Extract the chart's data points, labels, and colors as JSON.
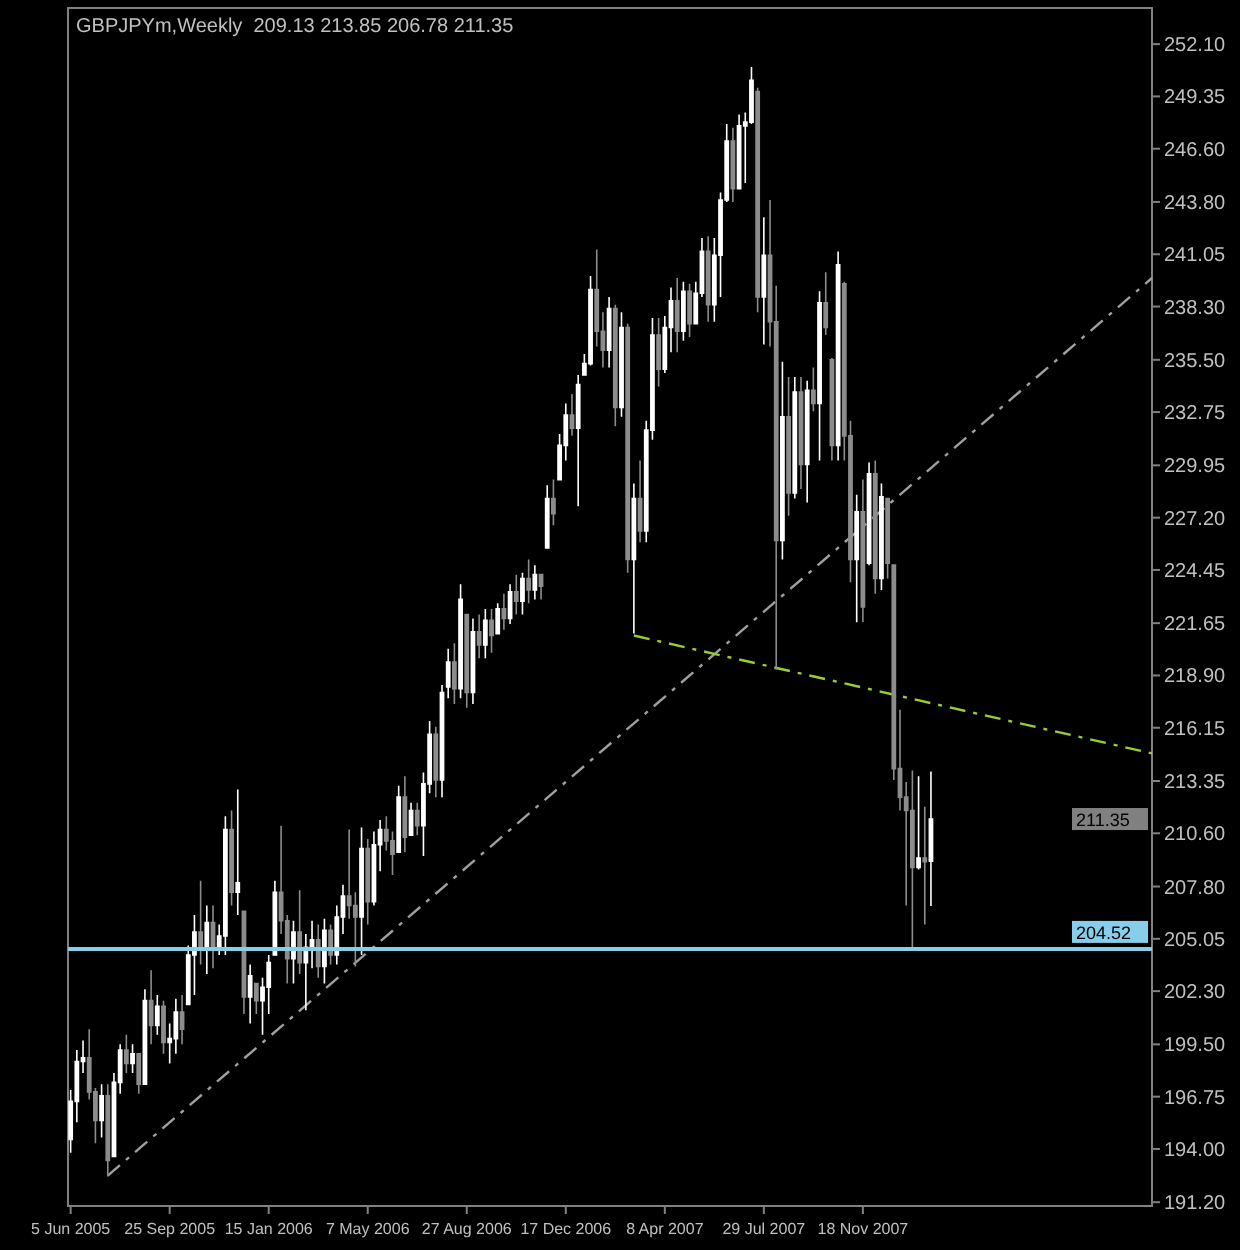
{
  "chart_data": {
    "type": "candlestick",
    "title": "GBPJPYm,Weekly  209.13 213.85 206.78 211.35",
    "colors": [
      "#ffffff",
      "#ffffff",
      "#ffffff",
      "#8c8c8c",
      "#8c8c8c",
      "#ffffff",
      "#8c8c8c",
      "#ffffff",
      "#ffffff",
      "#8c8c8c",
      "#ffffff",
      "#8c8c8c",
      "#ffffff",
      "#8c8c8c",
      "#ffffff",
      "#8c8c8c",
      "#ffffff",
      "#ffffff",
      "#8c8c8c",
      "#ffffff",
      "#ffffff",
      "#8c8c8c",
      "#ffffff",
      "#8c8c8c",
      "#ffffff",
      "#ffffff",
      "#8c8c8c",
      "#ffffff",
      "#8c8c8c",
      "#ffffff",
      "#8c8c8c",
      "#ffffff",
      "#ffffff",
      "#ffffff",
      "#8c8c8c",
      "#8c8c8c",
      "#ffffff",
      "#8c8c8c",
      "#ffffff",
      "#ffffff",
      "#8c8c8c",
      "#ffffff",
      "#8c8c8c",
      "#ffffff",
      "#ffffff",
      "#8c8c8c",
      "#8c8c8c",
      "#ffffff",
      "#8c8c8c",
      "#ffffff",
      "#ffffff",
      "#8c8c8c",
      "#8c8c8c",
      "#ffffff",
      "#8c8c8c",
      "#ffffff",
      "#8c8c8c",
      "#ffffff",
      "#ffffff",
      "#8c8c8c",
      "#ffffff",
      "#ffffff",
      "#8c8c8c",
      "#ffffff",
      "#8c8c8c",
      "#ffffff",
      "#8c8c8c",
      "#ffffff",
      "#8c8c8c",
      "#ffffff",
      "#8c8c8c",
      "#ffffff",
      "#8c8c8c",
      "#ffffff",
      "#8c8c8c",
      "#ffffff",
      "#8c8c8c",
      "#ffffff",
      "#8c8c8c",
      "#ffffff",
      "#ffffff",
      "#8c8c8c",
      "#ffffff",
      "#ffffff",
      "#ffffff",
      "#8c8c8c",
      "#8c8c8c",
      "#ffffff",
      "#8c8c8c",
      "#ffffff",
      "#8c8c8c",
      "#ffffff",
      "#8c8c8c",
      "#ffffff",
      "#ffffff",
      "#8c8c8c",
      "#ffffff",
      "#ffffff",
      "#8c8c8c",
      "#ffffff",
      "#8c8c8c",
      "#ffffff",
      "#ffffff",
      "#8c8c8c",
      "#ffffff",
      "#ffffff",
      "#ffffff",
      "#8c8c8c",
      "#ffffff",
      "#ffffff",
      "#ffffff",
      "#8c8c8c",
      "#ffffff",
      "#8c8c8c",
      "#8c8c8c",
      "#ffffff",
      "#8c8c8c",
      "#ffffff",
      "#8c8c8c",
      "#ffffff",
      "#8c8c8c",
      "#ffffff",
      "#8c8c8c",
      "#8c8c8c",
      "#ffffff",
      "#8c8c8c",
      "#8c8c8c",
      "#ffffff",
      "#8c8c8c",
      "#ffffff",
      "#8c8c8c",
      "#ffffff",
      "#8c8c8c",
      "#8c8c8c",
      "#8c8c8c",
      "#8c8c8c",
      "#8c8c8c",
      "#ffffff",
      "#8c8c8c",
      "#ffffff"
    ],
    "x": [
      "2005-06-05",
      "2005-06-12",
      "2005-06-19",
      "2005-06-26",
      "2005-07-03",
      "2005-07-10",
      "2005-07-17",
      "2005-07-24",
      "2005-07-31",
      "2005-08-07",
      "2005-08-14",
      "2005-08-21",
      "2005-08-28",
      "2005-09-04",
      "2005-09-11",
      "2005-09-18",
      "2005-09-25",
      "2005-10-02",
      "2005-10-09",
      "2005-10-16",
      "2005-10-23",
      "2005-10-30",
      "2005-11-06",
      "2005-11-13",
      "2005-11-20",
      "2005-11-27",
      "2005-12-04",
      "2005-12-11",
      "2005-12-18",
      "2005-12-25",
      "2006-01-01",
      "2006-01-08",
      "2006-01-15",
      "2006-01-22",
      "2006-01-29",
      "2006-02-05",
      "2006-02-12",
      "2006-02-19",
      "2006-02-26",
      "2006-03-05",
      "2006-03-12",
      "2006-03-19",
      "2006-03-26",
      "2006-04-02",
      "2006-04-09",
      "2006-04-16",
      "2006-04-23",
      "2006-04-30",
      "2006-05-07",
      "2006-05-14",
      "2006-05-21",
      "2006-05-28",
      "2006-06-04",
      "2006-06-11",
      "2006-06-18",
      "2006-06-25",
      "2006-07-02",
      "2006-07-09",
      "2006-07-16",
      "2006-07-23",
      "2006-07-30",
      "2006-08-06",
      "2006-08-13",
      "2006-08-20",
      "2006-08-27",
      "2006-09-03",
      "2006-09-10",
      "2006-09-17",
      "2006-09-24",
      "2006-10-01",
      "2006-10-08",
      "2006-10-15",
      "2006-10-22",
      "2006-10-29",
      "2006-11-05",
      "2006-11-12",
      "2006-11-19",
      "2006-11-26",
      "2006-12-03",
      "2006-12-10",
      "2006-12-17",
      "2006-12-24",
      "2006-12-31",
      "2007-01-07",
      "2007-01-14",
      "2007-01-21",
      "2007-01-28",
      "2007-02-04",
      "2007-02-11",
      "2007-02-18",
      "2007-02-25",
      "2007-03-04",
      "2007-03-11",
      "2007-03-18",
      "2007-03-25",
      "2007-04-01",
      "2007-04-08",
      "2007-04-15",
      "2007-04-22",
      "2007-04-29",
      "2007-05-06",
      "2007-05-13",
      "2007-05-20",
      "2007-05-27",
      "2007-06-03",
      "2007-06-10",
      "2007-06-17",
      "2007-06-24",
      "2007-07-01",
      "2007-07-08",
      "2007-07-15",
      "2007-07-22",
      "2007-07-29",
      "2007-08-05",
      "2007-08-12",
      "2007-08-19",
      "2007-08-26",
      "2007-09-02",
      "2007-09-09",
      "2007-09-16",
      "2007-09-23",
      "2007-09-30",
      "2007-10-07",
      "2007-10-14",
      "2007-10-21",
      "2007-10-28",
      "2007-11-04",
      "2007-11-11",
      "2007-11-18",
      "2007-11-25",
      "2007-12-02",
      "2007-12-09",
      "2007-12-16",
      "2007-12-23",
      "2007-12-30",
      "2008-01-06",
      "2008-01-13",
      "2008-01-20",
      "2008-01-27",
      "2008-02-03"
    ],
    "ohlc": [
      [
        194.5,
        197.1,
        193.8,
        196.5
      ],
      [
        196.5,
        199.2,
        195.4,
        198.6
      ],
      [
        198.6,
        199.7,
        198.0,
        198.8
      ],
      [
        198.8,
        200.3,
        196.6,
        197.0
      ],
      [
        197.0,
        197.2,
        194.3,
        195.5
      ],
      [
        195.5,
        197.4,
        194.6,
        196.8
      ],
      [
        196.8,
        197.4,
        192.55,
        193.4
      ],
      [
        193.6,
        198.0,
        193.6,
        197.5
      ],
      [
        197.5,
        199.5,
        196.9,
        199.2
      ],
      [
        199.2,
        200.0,
        198.0,
        198.5
      ],
      [
        198.5,
        199.5,
        198.0,
        199.0
      ],
      [
        199.0,
        199.0,
        196.9,
        197.4
      ],
      [
        197.4,
        202.4,
        197.4,
        201.8
      ],
      [
        201.8,
        203.4,
        199.5,
        200.5
      ],
      [
        200.5,
        202.1,
        200.0,
        201.5
      ],
      [
        201.5,
        201.8,
        199.0,
        199.6
      ],
      [
        199.6,
        200.6,
        198.5,
        199.8
      ],
      [
        199.8,
        201.9,
        199.0,
        201.2
      ],
      [
        201.2,
        202.1,
        199.5,
        200.3
      ],
      [
        201.6,
        204.7,
        201.6,
        204.2
      ],
      [
        204.2,
        206.3,
        202.1,
        205.4
      ],
      [
        205.4,
        208.1,
        203.7,
        204.6
      ],
      [
        204.6,
        206.8,
        203.2,
        205.9
      ],
      [
        205.9,
        206.8,
        203.5,
        204.5
      ],
      [
        204.5,
        205.8,
        204.2,
        205.2
      ],
      [
        205.2,
        211.5,
        204.2,
        210.8
      ],
      [
        210.8,
        211.8,
        206.8,
        207.5
      ],
      [
        207.5,
        212.9,
        206.3,
        208.0
      ],
      [
        206.5,
        206.5,
        201.1,
        202.0
      ],
      [
        202.0,
        203.7,
        200.6,
        203.1
      ],
      [
        202.7,
        202.7,
        201.1,
        201.8
      ],
      [
        201.8,
        203.0,
        200.0,
        202.5
      ],
      [
        202.5,
        204.2,
        201.1,
        203.8
      ],
      [
        204.2,
        208.1,
        204.2,
        207.5
      ],
      [
        207.5,
        211.0,
        205.3,
        206.0
      ],
      [
        206.0,
        206.3,
        202.7,
        204.0
      ],
      [
        204.0,
        206.0,
        202.7,
        205.4
      ],
      [
        205.4,
        207.6,
        203.2,
        203.8
      ],
      [
        203.8,
        205.3,
        201.3,
        204.6
      ],
      [
        204.6,
        206.0,
        203.5,
        205.0
      ],
      [
        205.0,
        205.8,
        203.0,
        203.6
      ],
      [
        203.6,
        206.1,
        202.7,
        205.5
      ],
      [
        205.5,
        205.8,
        203.7,
        204.2
      ],
      [
        204.2,
        206.8,
        203.7,
        206.2
      ],
      [
        206.2,
        207.9,
        205.3,
        207.3
      ],
      [
        207.3,
        210.8,
        206.1,
        206.8
      ],
      [
        206.8,
        207.5,
        203.6,
        206.2
      ],
      [
        206.2,
        210.9,
        204.2,
        209.8
      ],
      [
        209.8,
        210.3,
        205.8,
        207.0
      ],
      [
        207.0,
        210.7,
        206.8,
        210.0
      ],
      [
        210.0,
        211.3,
        208.6,
        210.8
      ],
      [
        210.8,
        211.5,
        209.7,
        210.2
      ],
      [
        210.2,
        210.7,
        208.4,
        209.5
      ],
      [
        209.6,
        213.1,
        209.6,
        212.5
      ],
      [
        212.5,
        213.6,
        209.6,
        210.4
      ],
      [
        210.5,
        212.2,
        210.5,
        211.8
      ],
      [
        211.8,
        212.2,
        210.5,
        211.0
      ],
      [
        211.0,
        213.8,
        209.4,
        213.2
      ],
      [
        213.2,
        216.5,
        212.7,
        215.8
      ],
      [
        215.8,
        216.2,
        212.5,
        213.4
      ],
      [
        213.4,
        218.4,
        212.5,
        218.0
      ],
      [
        218.3,
        220.3,
        217.7,
        219.6
      ],
      [
        219.6,
        220.6,
        217.4,
        218.2
      ],
      [
        218.2,
        223.7,
        217.7,
        222.9
      ],
      [
        222.1,
        222.1,
        217.2,
        218.0
      ],
      [
        218.0,
        221.9,
        217.4,
        221.2
      ],
      [
        221.2,
        222.1,
        219.8,
        220.5
      ],
      [
        220.5,
        222.4,
        219.8,
        221.8
      ],
      [
        221.8,
        222.4,
        220.1,
        221.0
      ],
      [
        221.1,
        222.7,
        221.1,
        222.4
      ],
      [
        222.4,
        223.2,
        221.3,
        221.9
      ],
      [
        221.9,
        223.7,
        221.6,
        223.3
      ],
      [
        223.3,
        224.2,
        222.1,
        222.8
      ],
      [
        222.8,
        224.3,
        222.1,
        224.0
      ],
      [
        224.0,
        225.0,
        222.7,
        223.4
      ],
      [
        223.4,
        224.7,
        222.9,
        224.2
      ],
      [
        224.2,
        224.2,
        222.9,
        223.6
      ],
      [
        225.6,
        228.9,
        225.6,
        228.2
      ],
      [
        228.2,
        229.2,
        226.8,
        227.4
      ],
      [
        229.2,
        231.6,
        229.2,
        231.0
      ],
      [
        231.0,
        233.2,
        230.2,
        232.6
      ],
      [
        232.6,
        233.7,
        231.5,
        231.9
      ],
      [
        231.9,
        234.7,
        227.8,
        234.2
      ],
      [
        234.7,
        235.8,
        234.7,
        235.3
      ],
      [
        235.3,
        239.9,
        235.2,
        239.2
      ],
      [
        239.2,
        241.3,
        236.2,
        237.0
      ],
      [
        237.0,
        238.0,
        235.1,
        236.0
      ],
      [
        236.0,
        238.8,
        235.1,
        238.2
      ],
      [
        238.2,
        238.4,
        232.0,
        233.0
      ],
      [
        233.0,
        238.0,
        232.5,
        237.2
      ],
      [
        237.2,
        237.4,
        224.3,
        225.0
      ],
      [
        225.0,
        229.0,
        221.1,
        228.2
      ],
      [
        228.2,
        230.2,
        225.9,
        226.5
      ],
      [
        226.5,
        232.3,
        225.9,
        231.8
      ],
      [
        231.8,
        237.7,
        231.3,
        236.8
      ],
      [
        236.8,
        237.7,
        234.1,
        235.0
      ],
      [
        235.0,
        237.8,
        234.8,
        237.2
      ],
      [
        237.2,
        239.3,
        235.9,
        238.6
      ],
      [
        238.6,
        239.8,
        235.9,
        237.0
      ],
      [
        237.0,
        239.6,
        236.5,
        239.1
      ],
      [
        239.1,
        239.5,
        236.7,
        237.4
      ],
      [
        237.4,
        239.6,
        237.4,
        239.0
      ],
      [
        239.0,
        241.9,
        238.8,
        241.2
      ],
      [
        241.2,
        242.0,
        237.5,
        238.4
      ],
      [
        238.4,
        241.9,
        237.5,
        241.0
      ],
      [
        241.0,
        244.3,
        238.8,
        243.9
      ],
      [
        243.9,
        247.9,
        243.8,
        247.0
      ],
      [
        247.0,
        247.7,
        243.8,
        244.5
      ],
      [
        244.5,
        248.4,
        244.5,
        247.8
      ],
      [
        247.8,
        248.5,
        244.8,
        248.0
      ],
      [
        248.0,
        250.9,
        247.9,
        250.2
      ],
      [
        249.6,
        249.8,
        238.0,
        238.8
      ],
      [
        238.8,
        243.0,
        236.3,
        241.0
      ],
      [
        241.0,
        243.9,
        236.2,
        237.5
      ],
      [
        237.5,
        239.4,
        219.2,
        226.0
      ],
      [
        226.0,
        235.4,
        225.0,
        232.5
      ],
      [
        232.5,
        234.6,
        227.3,
        228.5
      ],
      [
        228.5,
        234.6,
        228.2,
        233.8
      ],
      [
        233.8,
        234.6,
        228.7,
        230.0
      ],
      [
        230.0,
        234.4,
        228.0,
        233.9
      ],
      [
        233.9,
        235.1,
        232.8,
        233.2
      ],
      [
        233.2,
        239.1,
        230.2,
        238.5
      ],
      [
        238.5,
        240.1,
        236.8,
        237.2
      ],
      [
        235.5,
        235.6,
        230.2,
        231.0
      ],
      [
        231.0,
        241.2,
        230.2,
        240.5
      ],
      [
        239.5,
        239.6,
        230.2,
        231.5
      ],
      [
        231.5,
        232.3,
        223.8,
        225.0
      ],
      [
        225.0,
        228.4,
        221.7,
        227.5
      ],
      [
        227.5,
        229.2,
        221.7,
        222.5
      ],
      [
        224.8,
        230.1,
        224.7,
        229.5
      ],
      [
        229.5,
        230.2,
        223.2,
        224.0
      ],
      [
        224.0,
        229.0,
        223.4,
        228.3
      ],
      [
        228.2,
        228.2,
        224.0,
        224.8
      ],
      [
        224.7,
        224.7,
        213.4,
        214.0
      ],
      [
        214.0,
        217.1,
        211.8,
        212.5
      ],
      [
        212.5,
        213.3,
        206.8,
        211.8
      ],
      [
        211.8,
        213.9,
        204.52,
        208.8
      ],
      [
        208.8,
        213.6,
        208.7,
        209.3
      ],
      [
        209.3,
        212.0,
        205.8,
        209.1
      ],
      [
        209.13,
        213.85,
        206.78,
        211.35
      ]
    ],
    "series": [
      {
        "type": "line",
        "x": [
          "2005-07-17",
          "2008-10-10"
        ],
        "values": [
          192.6,
          239.8
        ],
        "color": "#a0a0a0",
        "line_style": "dashed"
      },
      {
        "type": "line",
        "x": [
          "2007-03-04",
          "2008-10-10"
        ],
        "values": [
          221.0,
          214.8
        ],
        "color": "#9acd32",
        "line_style": "dashed"
      }
    ],
    "xlim": [
      "2005-06-02",
      "2008-10-10"
    ],
    "xticks": [
      {
        "value": "2005-06-05",
        "label": "5 Jun 2005"
      },
      {
        "value": "2005-09-25",
        "label": "25 Sep 2005"
      },
      {
        "value": "2006-01-15",
        "label": "15 Jan 2006"
      },
      {
        "value": "2006-05-07",
        "label": "7 May 2006"
      },
      {
        "value": "2006-08-27",
        "label": "27 Aug 2006"
      },
      {
        "value": "2006-12-17",
        "label": "17 Dec 2006"
      },
      {
        "value": "2007-04-08",
        "label": "8 Apr 2007"
      },
      {
        "value": "2007-07-29",
        "label": "29 Jul 2007"
      },
      {
        "value": "2007-11-18",
        "label": "18 Nov 2007"
      }
    ],
    "ylim": [
      191.0,
      254.0
    ],
    "yticks": [
      {
        "value": 191.2,
        "label": "191.20"
      },
      {
        "value": 194.0,
        "label": "194.00"
      },
      {
        "value": 196.75,
        "label": "196.75"
      },
      {
        "value": 199.5,
        "label": "199.50"
      },
      {
        "value": 202.3,
        "label": "202.30"
      },
      {
        "value": 205.05,
        "label": "205.05"
      },
      {
        "value": 207.8,
        "label": "207.80"
      },
      {
        "value": 210.6,
        "label": "210.60"
      },
      {
        "value": 213.35,
        "label": "213.35"
      },
      {
        "value": 216.15,
        "label": "216.15"
      },
      {
        "value": 218.9,
        "label": "218.90"
      },
      {
        "value": 221.65,
        "label": "221.65"
      },
      {
        "value": 224.45,
        "label": "224.45"
      },
      {
        "value": 227.2,
        "label": "227.20"
      },
      {
        "value": 229.95,
        "label": "229.95"
      },
      {
        "value": 232.75,
        "label": "232.75"
      },
      {
        "value": 235.5,
        "label": "235.50"
      },
      {
        "value": 238.3,
        "label": "238.30"
      },
      {
        "value": 241.05,
        "label": "241.05"
      },
      {
        "value": 243.8,
        "label": "243.80"
      },
      {
        "value": 246.6,
        "label": "246.60"
      },
      {
        "value": 249.35,
        "label": "249.35"
      },
      {
        "value": 252.1,
        "label": "252.10"
      }
    ],
    "ref_lines": [
      {
        "axis": "y",
        "value": 204.52,
        "label": "204.52",
        "color": "#87ceeb"
      }
    ],
    "annotations": [
      "211.35"
    ]
  }
}
